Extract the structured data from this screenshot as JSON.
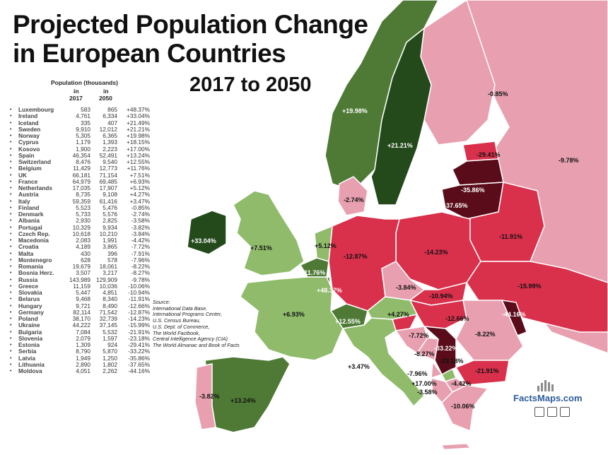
{
  "title_line1": "Projected Population Change",
  "title_line2": "in European Countries",
  "subtitle": "2017 to 2050",
  "table": {
    "header": "Population (thousands)",
    "col_in_1": "in",
    "col_in_2": "in",
    "col_year_1": "2017",
    "col_year_2": "2050",
    "rows": [
      {
        "country": "Luxembourg",
        "p2017": "583",
        "p2050": "865",
        "change": "+48.37%"
      },
      {
        "country": "Ireland",
        "p2017": "4,761",
        "p2050": "6,334",
        "change": "+33.04%"
      },
      {
        "country": "Iceland",
        "p2017": "335",
        "p2050": "407",
        "change": "+21.49%"
      },
      {
        "country": "Sweden",
        "p2017": "9,910",
        "p2050": "12,012",
        "change": "+21.21%"
      },
      {
        "country": "Norway",
        "p2017": "5,305",
        "p2050": "6,365",
        "change": "+19.98%"
      },
      {
        "country": "Cyprus",
        "p2017": "1,179",
        "p2050": "1,393",
        "change": "+18.15%"
      },
      {
        "country": "Kosovo",
        "p2017": "1,900",
        "p2050": "2,223",
        "change": "+17.00%"
      },
      {
        "country": "Spain",
        "p2017": "46,354",
        "p2050": "52,491",
        "change": "+13.24%"
      },
      {
        "country": "Switzerland",
        "p2017": "8,476",
        "p2050": "9,540",
        "change": "+12.55%"
      },
      {
        "country": "Belgium",
        "p2017": "11,429",
        "p2050": "12,773",
        "change": "+11.76%"
      },
      {
        "country": "UK",
        "p2017": "66,181",
        "p2050": "71,154",
        "change": "+7.51%"
      },
      {
        "country": "France",
        "p2017": "64,979",
        "p2050": "69,485",
        "change": "+6.93%"
      },
      {
        "country": "Netherlands",
        "p2017": "17,035",
        "p2050": "17,907",
        "change": "+5.12%"
      },
      {
        "country": "Austria",
        "p2017": "8,735",
        "p2050": "9,108",
        "change": "+4.27%"
      },
      {
        "country": "Italy",
        "p2017": "59,359",
        "p2050": "61,416",
        "change": "+3.47%"
      },
      {
        "country": "Finland",
        "p2017": "5,523",
        "p2050": "5,476",
        "change": "-0.85%"
      },
      {
        "country": "Denmark",
        "p2017": "5,733",
        "p2050": "5,576",
        "change": "-2.74%"
      },
      {
        "country": "Albania",
        "p2017": "2,930",
        "p2050": "2,825",
        "change": "-3.58%"
      },
      {
        "country": "Portugal",
        "p2017": "10,329",
        "p2050": "9,934",
        "change": "-3.82%"
      },
      {
        "country": "Czech Rep.",
        "p2017": "10,618",
        "p2050": "10,210",
        "change": "-3.84%"
      },
      {
        "country": "Macedonia",
        "p2017": "2,083",
        "p2050": "1,991",
        "change": "-4.42%"
      },
      {
        "country": "Croatia",
        "p2017": "4,189",
        "p2050": "3,865",
        "change": "-7.72%"
      },
      {
        "country": "Malta",
        "p2017": "430",
        "p2050": "396",
        "change": "-7.91%"
      },
      {
        "country": "Montenegro",
        "p2017": "628",
        "p2050": "578",
        "change": "-7.96%"
      },
      {
        "country": "Romania",
        "p2017": "19,679",
        "p2050": "18,061",
        "change": "-8.22%"
      },
      {
        "country": "Bosnia Herz.",
        "p2017": "3,507",
        "p2050": "3,217",
        "p2050_note": "",
        "change": "-8.27%"
      },
      {
        "country": "Russia",
        "p2017": "143,989",
        "p2050": "129,909",
        "change": "-9.78%"
      },
      {
        "country": "Greece",
        "p2017": "11,159",
        "p2050": "10,036",
        "change": "-10.06%"
      },
      {
        "country": "Slovakia",
        "p2017": "5,447",
        "p2050": "4,851",
        "change": "-10.94%"
      },
      {
        "country": "Belarus",
        "p2017": "9,468",
        "p2050": "8,340",
        "change": "-11.91%"
      },
      {
        "country": "Hungary",
        "p2017": "9,721",
        "p2050": "8,490",
        "change": "-12.66%"
      },
      {
        "country": "Germany",
        "p2017": "82,114",
        "p2050": "71,542",
        "change": "-12.87%"
      },
      {
        "country": "Poland",
        "p2017": "38,170",
        "p2050": "32,739",
        "change": "-14.23%"
      },
      {
        "country": "Ukraine",
        "p2017": "44,222",
        "p2050": "37,145",
        "change": "-15.99%"
      },
      {
        "country": "Bulgaria",
        "p2017": "7,084",
        "p2050": "5,532",
        "change": "-21.91%"
      },
      {
        "country": "Slovenia",
        "p2017": "2,079",
        "p2050": "1,597",
        "change": "-23.18%"
      },
      {
        "country": "Estonia",
        "p2017": "1,309",
        "p2050": "924",
        "change": "-29.41%"
      },
      {
        "country": "Serbia",
        "p2017": "8,790",
        "p2050": "5,870",
        "change": "-33.22%"
      },
      {
        "country": "Latvia",
        "p2017": "1,949",
        "p2050": "1,250",
        "change": "-35.86%"
      },
      {
        "country": "Lithuania",
        "p2017": "2,890",
        "p2050": "1,802",
        "change": "-37.65%"
      },
      {
        "country": "Moldova",
        "p2017": "4,051",
        "p2050": "2,262",
        "change": "-44.16%"
      }
    ]
  },
  "source": [
    "Source:",
    "International Data Base,",
    "International Programs Center,",
    "U.S. Census Bureau,",
    "U.S. Dept. of Commerce,",
    "The World Factbook,",
    "Central Intelligence Agency (CIA)",
    "The World Almanac and Book of Facts"
  ],
  "map_labels": [
    {
      "id": "norway",
      "text": "+19.98%",
      "dark": true
    },
    {
      "id": "sweden",
      "text": "+21.21%",
      "dark": true
    },
    {
      "id": "finland",
      "text": "-0.85%",
      "dark": false
    },
    {
      "id": "russia",
      "text": "-9.78%",
      "dark": false
    },
    {
      "id": "estonia",
      "text": "-29.41%",
      "dark": false
    },
    {
      "id": "latvia",
      "text": "-35.86%",
      "dark": true
    },
    {
      "id": "lithuania",
      "text": "-37.65%",
      "dark": true
    },
    {
      "id": "denmark",
      "text": "-2.74%",
      "dark": false
    },
    {
      "id": "belarus",
      "text": "-11.91%",
      "dark": false
    },
    {
      "id": "ireland",
      "text": "+33.04%",
      "dark": true
    },
    {
      "id": "uk",
      "text": "+7.51%",
      "dark": false
    },
    {
      "id": "netherlands",
      "text": "+5.12%",
      "dark": false
    },
    {
      "id": "belgium",
      "text": "+11.76%",
      "dark": true
    },
    {
      "id": "luxembourg",
      "text": "+48.37%",
      "dark": true
    },
    {
      "id": "germany",
      "text": "-12.87%",
      "dark": false
    },
    {
      "id": "poland",
      "text": "-14.23%",
      "dark": false
    },
    {
      "id": "ukraine",
      "text": "-15.99%",
      "dark": false
    },
    {
      "id": "czech",
      "text": "-3.84%",
      "dark": false
    },
    {
      "id": "slovakia",
      "text": "-10.94%",
      "dark": false
    },
    {
      "id": "austria",
      "text": "+4.27%",
      "dark": false
    },
    {
      "id": "hungary",
      "text": "-12.66%",
      "dark": false
    },
    {
      "id": "moldova",
      "text": "-44.16%",
      "dark": true
    },
    {
      "id": "romania",
      "text": "-8.22%",
      "dark": false
    },
    {
      "id": "france",
      "text": "+6.93%",
      "dark": false
    },
    {
      "id": "switzerland",
      "text": "+12.55%",
      "dark": true
    },
    {
      "id": "croatia",
      "text": "-7.72%",
      "dark": false
    },
    {
      "id": "bosnia",
      "text": "-8.27%",
      "dark": false
    },
    {
      "id": "serbia",
      "text": "-33.22%",
      "dark": true
    },
    {
      "id": "slovenia",
      "text": "-23.18%",
      "dark": false
    },
    {
      "id": "italy",
      "text": "+3.47%",
      "dark": false
    },
    {
      "id": "montenegro",
      "text": "-7.96%",
      "dark": false
    },
    {
      "id": "kosovo",
      "text": "+17.00%",
      "dark": false
    },
    {
      "id": "albania",
      "text": "-3.58%",
      "dark": false
    },
    {
      "id": "macedonia",
      "text": "-4.42%",
      "dark": false
    },
    {
      "id": "bulgaria",
      "text": "-21.91%",
      "dark": false
    },
    {
      "id": "greece",
      "text": "-10.06%",
      "dark": false
    },
    {
      "id": "spain",
      "text": "+13.24%",
      "dark": false
    },
    {
      "id": "portugal",
      "text": "-3.82%",
      "dark": false
    }
  ],
  "brand": "FactsMaps.com",
  "colors": {
    "dark_green": "#244a1c",
    "mid_green": "#4f7a36",
    "light_green": "#8fbb6b",
    "pale_pink": "#e8a0b0",
    "pink": "#e06880",
    "red": "#d9304c",
    "dark_red": "#5a0c1a",
    "sea": "#ffffff"
  }
}
